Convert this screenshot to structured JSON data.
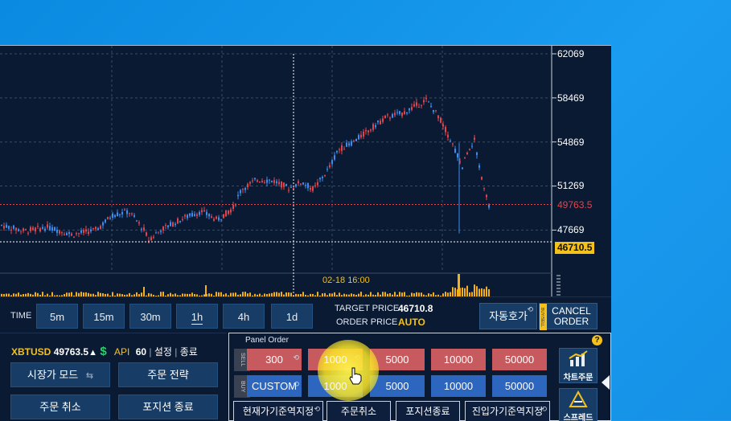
{
  "chart": {
    "price_ticks": [
      "62069",
      "58469",
      "54869",
      "51269",
      "47669"
    ],
    "current_price": "49763.5",
    "cursor_price": "46710.5",
    "cursor_time": "02-18 16:00"
  },
  "timeframes": {
    "label": "TIME",
    "items": [
      "5m",
      "15m",
      "30m",
      "1h",
      "4h",
      "1d"
    ],
    "active": "1h"
  },
  "prices": {
    "target_label": "TARGET PRICE",
    "target_value": "46710.8",
    "order_label": "ORDER PRICE",
    "order_value": "AUTO"
  },
  "actions": {
    "auto_quote": "자동호가",
    "cancel_order_1": "CANCEL",
    "cancel_order_2": "ORDER",
    "strip_text": "BUY/SELL"
  },
  "status": {
    "symbol": "XBTUSD",
    "price": "49763.5",
    "arrow": "▲",
    "dollar": "$",
    "api_label": "API",
    "api_value": "60",
    "settings": "설정",
    "exit": "종료"
  },
  "left_panel": {
    "market_mode": "시장가 모드",
    "order_strategy": "주문 전략",
    "cancel_order": "주문 취소",
    "close_position": "포지션 종료"
  },
  "order_panel": {
    "title": "Panel Order",
    "sell_label": "SELL",
    "buy_label": "BUY",
    "sell": [
      "300",
      "1000",
      "5000",
      "10000",
      "50000"
    ],
    "buy": [
      "CUSTOM",
      "1000",
      "5000",
      "10000",
      "50000"
    ],
    "bottom": [
      "현재가기준역지정",
      "주문취소",
      "포지션종료",
      "진입가기준역지정"
    ],
    "chart_order": "차트주문",
    "spread": "스프레드",
    "help": "?"
  },
  "colors": {
    "up": "#3b8ef0",
    "down": "#e0454c",
    "accent": "#f4c11a",
    "price_line": "#e0454c"
  }
}
